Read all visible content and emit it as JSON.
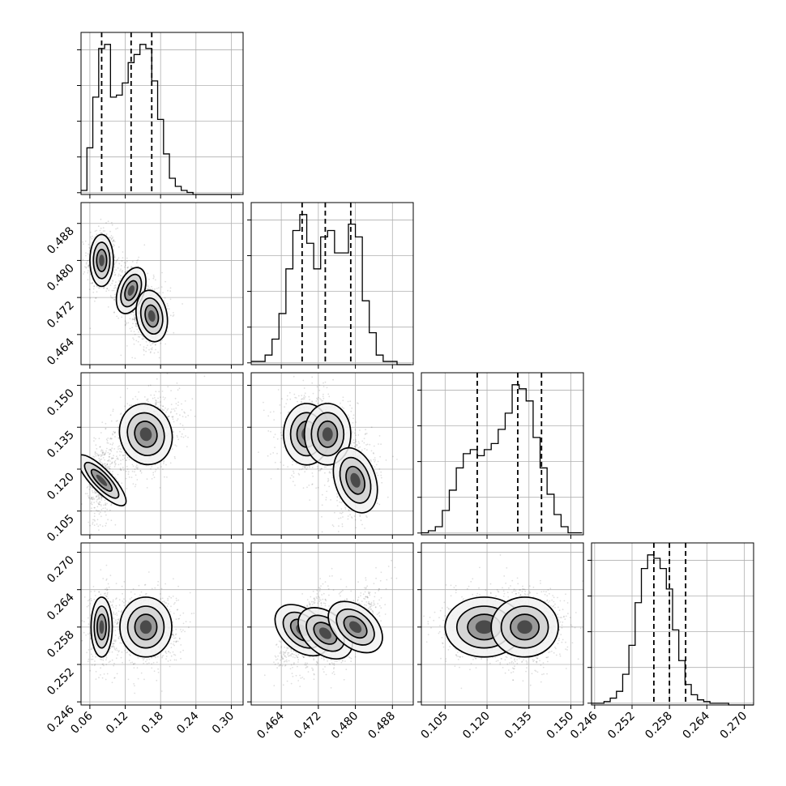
{
  "chart_data": {
    "type": "corner",
    "title": "",
    "parameters": [
      {
        "name": "",
        "range": [
          0.045,
          0.32
        ],
        "ticks": [
          0.06,
          0.12,
          0.18,
          0.24,
          0.3
        ],
        "tick_labels": [
          "0.06",
          "0.12",
          "0.18",
          "0.24",
          "0.30"
        ],
        "quantiles": [
          0.08,
          0.13,
          0.165
        ],
        "histogram": {
          "bin_edges": [
            0.045,
            0.055,
            0.065,
            0.075,
            0.085,
            0.095,
            0.105,
            0.115,
            0.125,
            0.135,
            0.145,
            0.155,
            0.165,
            0.175,
            0.185,
            0.195,
            0.205,
            0.215,
            0.225,
            0.235,
            0.245,
            0.255,
            0.265,
            0.275,
            0.285,
            0.295,
            0.305,
            0.315
          ],
          "counts": [
            2,
            23,
            48,
            72,
            74,
            48,
            49,
            55,
            65,
            69,
            74,
            72,
            56,
            37,
            20,
            8,
            4,
            2,
            1,
            0,
            0,
            0,
            0,
            0,
            0,
            0,
            0
          ]
        }
      },
      {
        "name": "",
        "range": [
          0.4575,
          0.4925
        ],
        "ticks": [
          0.464,
          0.472,
          0.48,
          0.488
        ],
        "tick_labels": [
          "0.464",
          "0.472",
          "0.480",
          "0.488"
        ],
        "quantiles": [
          0.4685,
          0.4735,
          0.479
        ],
        "histogram": {
          "bin_edges": [
            0.4575,
            0.459,
            0.4605,
            0.462,
            0.4635,
            0.465,
            0.4665,
            0.468,
            0.4695,
            0.471,
            0.4725,
            0.474,
            0.4755,
            0.477,
            0.4785,
            0.48,
            0.4815,
            0.483,
            0.4845,
            0.486,
            0.4875,
            0.489,
            0.4905,
            0.492
          ],
          "counts": [
            1,
            1,
            3,
            8,
            16,
            30,
            42,
            47,
            38,
            30,
            40,
            42,
            35,
            35,
            44,
            40,
            20,
            10,
            3,
            1,
            1,
            0,
            0
          ]
        }
      },
      {
        "name": "",
        "range": [
          0.0965,
          0.1545
        ],
        "ticks": [
          0.105,
          0.12,
          0.135,
          0.15
        ],
        "tick_labels": [
          "0.105",
          "0.120",
          "0.135",
          "0.150"
        ],
        "quantiles": [
          0.1165,
          0.131,
          0.1395
        ],
        "histogram": {
          "bin_edges": [
            0.0965,
            0.099,
            0.1015,
            0.104,
            0.1065,
            0.109,
            0.1115,
            0.114,
            0.1165,
            0.119,
            0.1215,
            0.124,
            0.1265,
            0.129,
            0.1315,
            0.134,
            0.1365,
            0.139,
            0.1415,
            0.144,
            0.1465,
            0.149,
            0.1515,
            0.154
          ],
          "counts": [
            1,
            2,
            4,
            12,
            22,
            33,
            40,
            42,
            39,
            42,
            45,
            52,
            60,
            74,
            72,
            66,
            48,
            33,
            20,
            10,
            4,
            1,
            1
          ]
        }
      },
      {
        "name": "",
        "range": [
          0.2455,
          0.2715
        ],
        "ticks": [
          0.246,
          0.252,
          0.258,
          0.264,
          0.27
        ],
        "tick_labels": [
          "0.246",
          "0.252",
          "0.258",
          "0.264",
          "0.270"
        ],
        "quantiles": [
          0.2555,
          0.258,
          0.2606
        ],
        "histogram": {
          "bin_edges": [
            0.2455,
            0.2465,
            0.2475,
            0.2485,
            0.2495,
            0.2505,
            0.2515,
            0.2525,
            0.2535,
            0.2545,
            0.2555,
            0.2565,
            0.2575,
            0.2585,
            0.2595,
            0.2605,
            0.2615,
            0.2625,
            0.2635,
            0.2645,
            0.2655,
            0.2665,
            0.2675,
            0.2685,
            0.2695,
            0.2705,
            0.2715
          ],
          "counts": [
            1,
            1,
            2,
            4,
            8,
            18,
            35,
            60,
            80,
            88,
            86,
            80,
            68,
            44,
            26,
            12,
            6,
            3,
            2,
            1,
            1,
            1,
            0,
            0,
            0,
            0
          ]
        }
      }
    ],
    "pairs": [
      {
        "row": 1,
        "col": 0,
        "modes": [
          {
            "cx": 0.08,
            "cy": 0.48,
            "sx": 0.01,
            "sy": 0.0028,
            "rho": 0.0,
            "weight": 0.36
          },
          {
            "cx": 0.13,
            "cy": 0.4735,
            "sx": 0.011,
            "sy": 0.0026,
            "rho": -0.2,
            "weight": 0.3
          },
          {
            "cx": 0.165,
            "cy": 0.468,
            "sx": 0.013,
            "sy": 0.0028,
            "rho": 0.1,
            "weight": 0.34
          }
        ]
      },
      {
        "row": 2,
        "col": 0,
        "modes": [
          {
            "cx": 0.08,
            "cy": 0.116,
            "sx": 0.009,
            "sy": 0.006,
            "rho": 0.3,
            "weight": 0.3
          },
          {
            "cx": 0.155,
            "cy": 0.1325,
            "sx": 0.022,
            "sy": 0.0055,
            "rho": 0.25,
            "weight": 0.7
          }
        ]
      },
      {
        "row": 2,
        "col": 1,
        "modes": [
          {
            "cx": 0.4695,
            "cy": 0.1325,
            "sx": 0.0025,
            "sy": 0.0055,
            "rho": 0.0,
            "weight": 0.35
          },
          {
            "cx": 0.474,
            "cy": 0.1325,
            "sx": 0.0025,
            "sy": 0.0055,
            "rho": 0.0,
            "weight": 0.33
          },
          {
            "cx": 0.48,
            "cy": 0.116,
            "sx": 0.0022,
            "sy": 0.006,
            "rho": 0.2,
            "weight": 0.32
          }
        ]
      },
      {
        "row": 3,
        "col": 0,
        "modes": [
          {
            "cx": 0.08,
            "cy": 0.258,
            "sx": 0.009,
            "sy": 0.0024,
            "rho": 0.0,
            "weight": 0.35
          },
          {
            "cx": 0.155,
            "cy": 0.258,
            "sx": 0.022,
            "sy": 0.0024,
            "rho": 0.0,
            "weight": 0.65
          }
        ]
      },
      {
        "row": 3,
        "col": 1,
        "modes": [
          {
            "cx": 0.4685,
            "cy": 0.2575,
            "sx": 0.0022,
            "sy": 0.0025,
            "rho": 0.75,
            "weight": 0.34
          },
          {
            "cx": 0.4735,
            "cy": 0.257,
            "sx": 0.0022,
            "sy": 0.0025,
            "rho": 0.75,
            "weight": 0.32
          },
          {
            "cx": 0.48,
            "cy": 0.258,
            "sx": 0.0022,
            "sy": 0.0025,
            "rho": 0.75,
            "weight": 0.34
          }
        ]
      },
      {
        "row": 3,
        "col": 2,
        "modes": [
          {
            "cx": 0.119,
            "cy": 0.258,
            "sx": 0.007,
            "sy": 0.0024,
            "rho": 0.0,
            "weight": 0.35
          },
          {
            "cx": 0.1335,
            "cy": 0.258,
            "sx": 0.006,
            "sy": 0.0024,
            "rho": 0.0,
            "weight": 0.65
          }
        ]
      }
    ],
    "grid": true,
    "legend": "none"
  }
}
